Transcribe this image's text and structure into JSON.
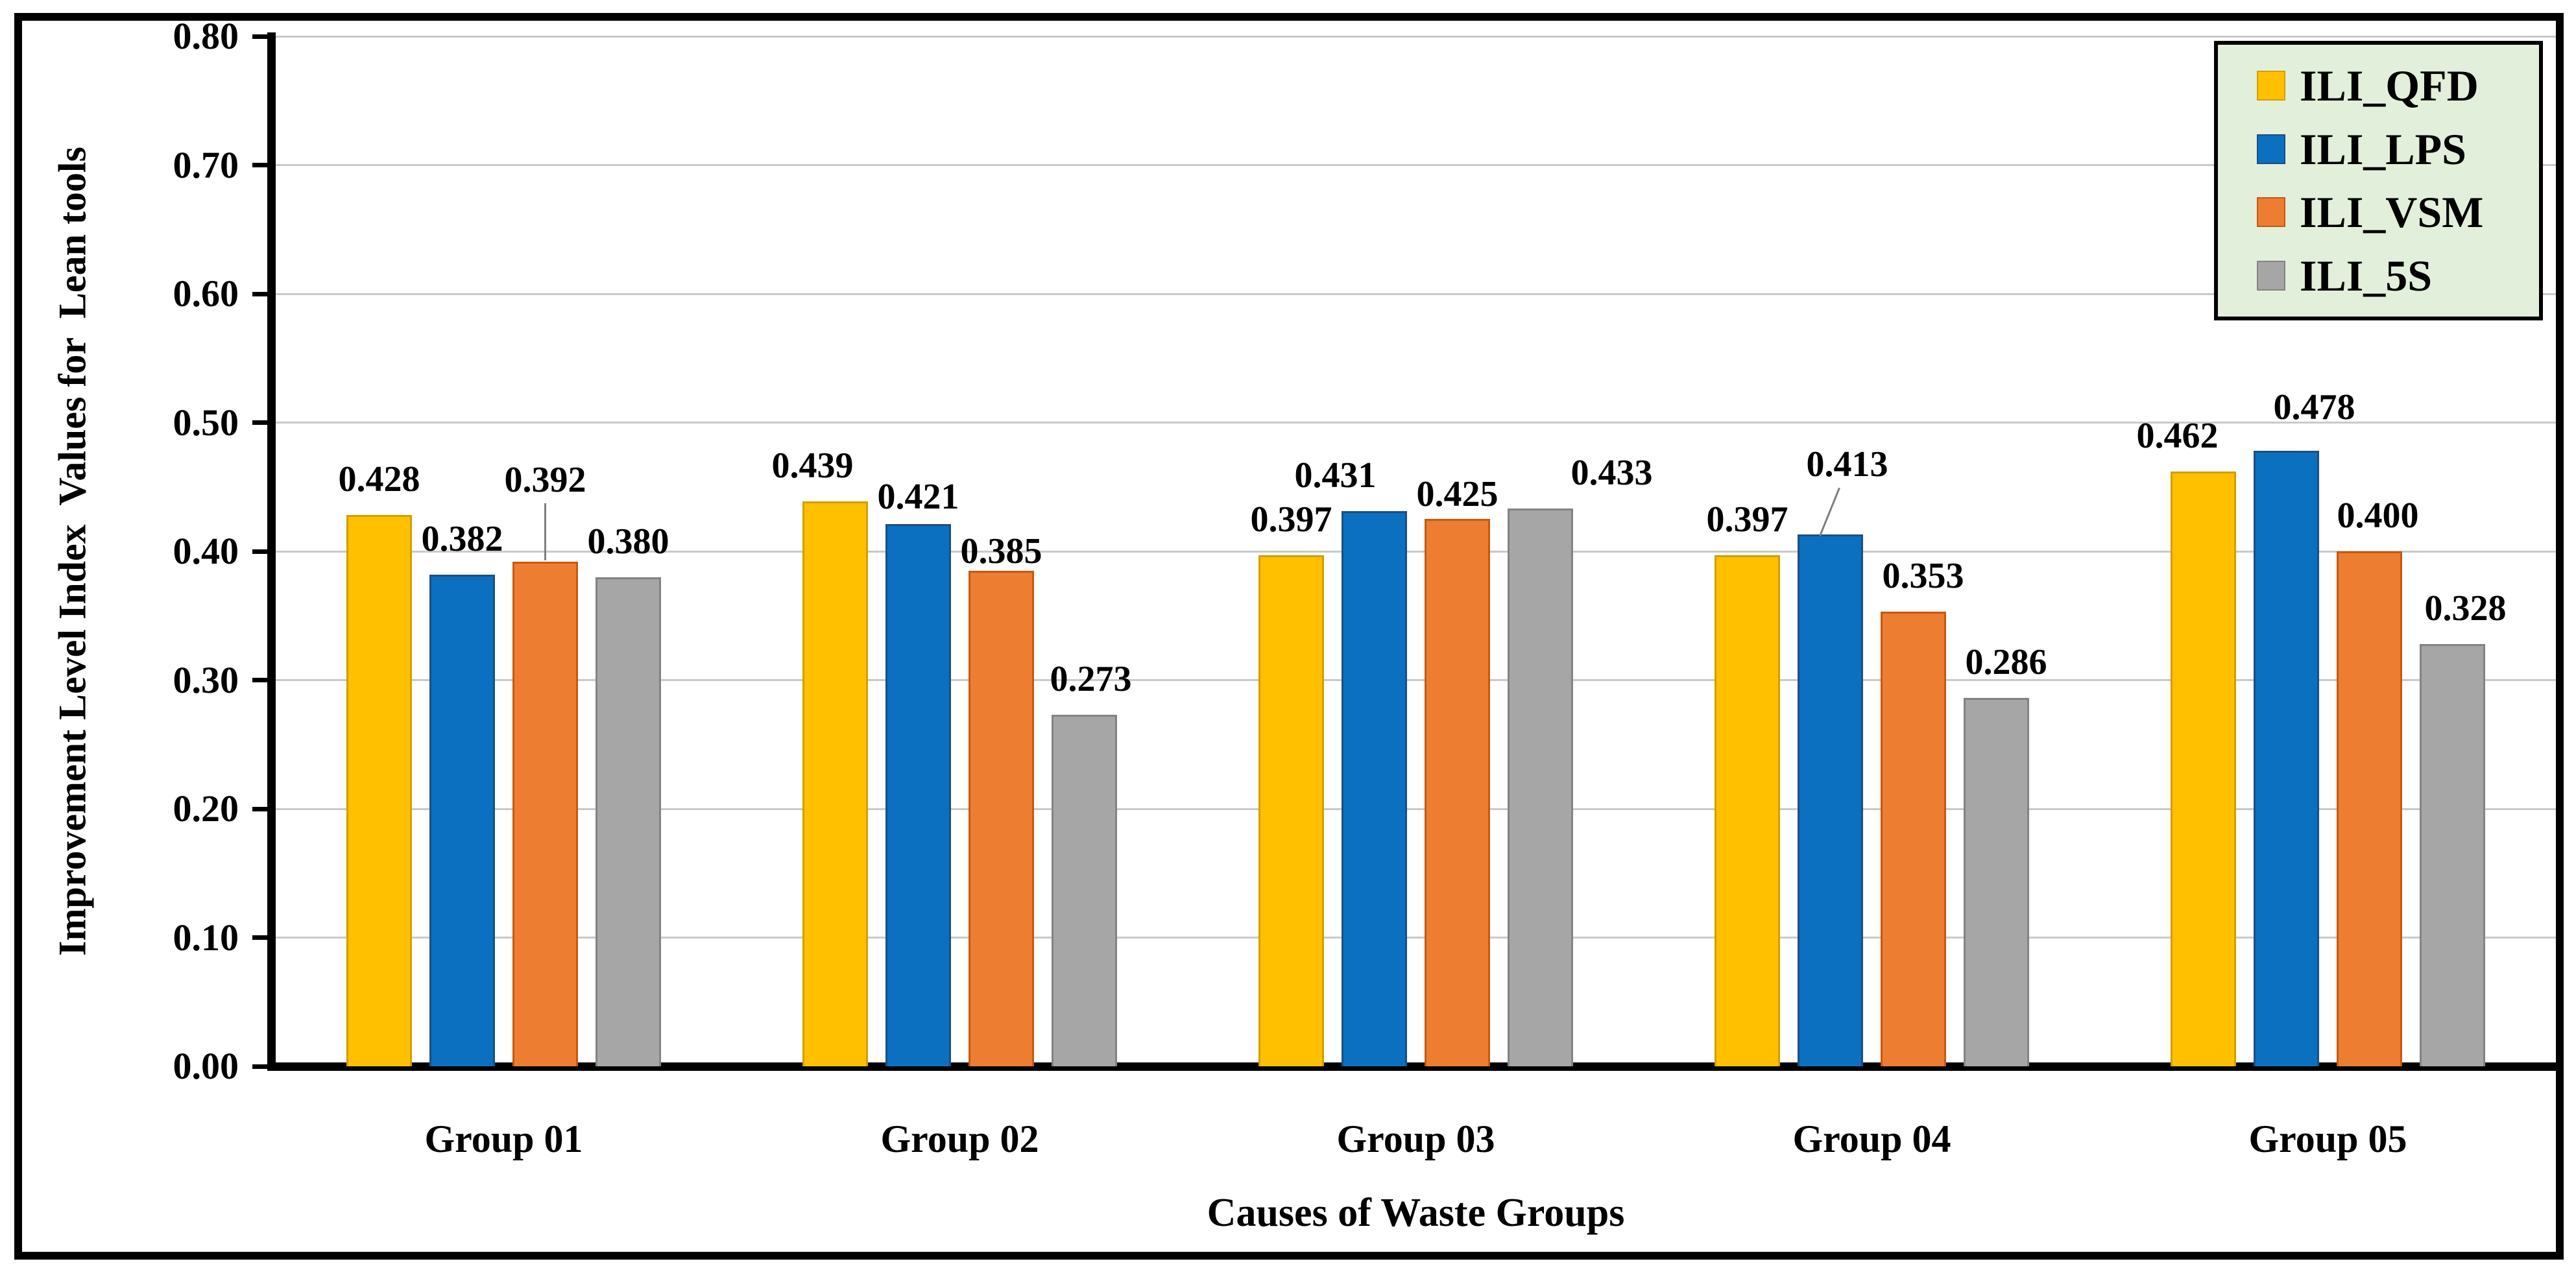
{
  "chart_data": {
    "type": "bar",
    "title": "",
    "xlabel": "Causes of Waste Groups",
    "ylabel": "Improvement Level Index  Values for  Lean tools",
    "categories": [
      "Group 01",
      "Group 02",
      "Group 03",
      "Group 04",
      "Group 05"
    ],
    "series": [
      {
        "name": "ILI_QFD",
        "color": "#FFC000",
        "border_color": "#D49E00",
        "values": [
          0.428,
          0.439,
          0.397,
          0.397,
          0.462
        ],
        "labels": [
          "0.428",
          "0.439",
          "0.397",
          "0.397",
          "0.462"
        ]
      },
      {
        "name": "ILI_LPS",
        "color": "#0B70C0",
        "border_color": "#1C4F82",
        "values": [
          0.382,
          0.421,
          0.431,
          0.413,
          0.478
        ],
        "labels": [
          "0.382",
          "0.421",
          "0.431",
          "0.413",
          "0.478"
        ]
      },
      {
        "name": "ILI_VSM",
        "color": "#ED7D31",
        "border_color": "#C55A11",
        "values": [
          0.392,
          0.385,
          0.425,
          0.353,
          0.4
        ],
        "labels": [
          "0.392",
          "0.385",
          "0.425",
          "0.353",
          "0.400"
        ]
      },
      {
        "name": "ILI_5S",
        "color": "#A6A6A6",
        "border_color": "#838383",
        "values": [
          0.38,
          0.273,
          0.433,
          0.286,
          0.328
        ],
        "labels": [
          "0.380",
          "0.273",
          "0.433",
          "0.286",
          "0.328"
        ]
      }
    ],
    "ylim": [
      0.0,
      0.8
    ],
    "ytick_step": 0.1,
    "yticks": [
      "0.80",
      "0.70",
      "0.60",
      "0.50",
      "0.40",
      "0.30",
      "0.20",
      "0.10",
      "0.00"
    ],
    "grid": true,
    "gridline_color": "#C9C9C9",
    "legend_position": "top-right",
    "legend_bg": "#E2EFDA",
    "legend_border": "#000000",
    "leader_line_color": "#7F7F7F",
    "legend_entries": [
      "ILI_QFD",
      "ILI_LPS",
      "ILI_VSM",
      "ILI_5S"
    ]
  }
}
